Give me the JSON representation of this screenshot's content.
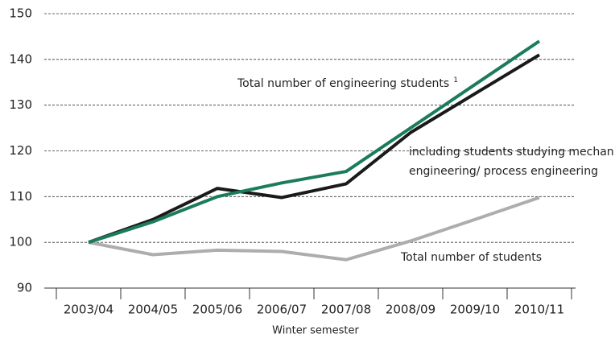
{
  "chart_data": {
    "type": "line",
    "x_label": "Winter semester",
    "categories": [
      "2003/04",
      "2004/05",
      "2005/06",
      "2006/07",
      "2007/08",
      "2008/09",
      "2009/10",
      "2010/11"
    ],
    "series": [
      {
        "name": "Total number of engineering students",
        "footnote": "1",
        "color": "#1b7c5c",
        "values": [
          100,
          104.5,
          110,
          113,
          115.5,
          125,
          134.5,
          144
        ]
      },
      {
        "name": [
          "including students studying mechan",
          "engineering/ process engineering"
        ],
        "color": "#1a1a1a",
        "values": [
          100,
          105,
          111.8,
          109.8,
          112.8,
          124,
          132.5,
          141
        ]
      },
      {
        "name": "Total number of students",
        "color": "#adadad",
        "values": [
          100,
          97.3,
          98.3,
          98,
          96.2,
          100.3,
          105,
          109.8
        ]
      }
    ],
    "ylim": [
      90,
      150
    ],
    "yticks": [
      90,
      100,
      110,
      120,
      130,
      140,
      150
    ],
    "grid": true
  }
}
